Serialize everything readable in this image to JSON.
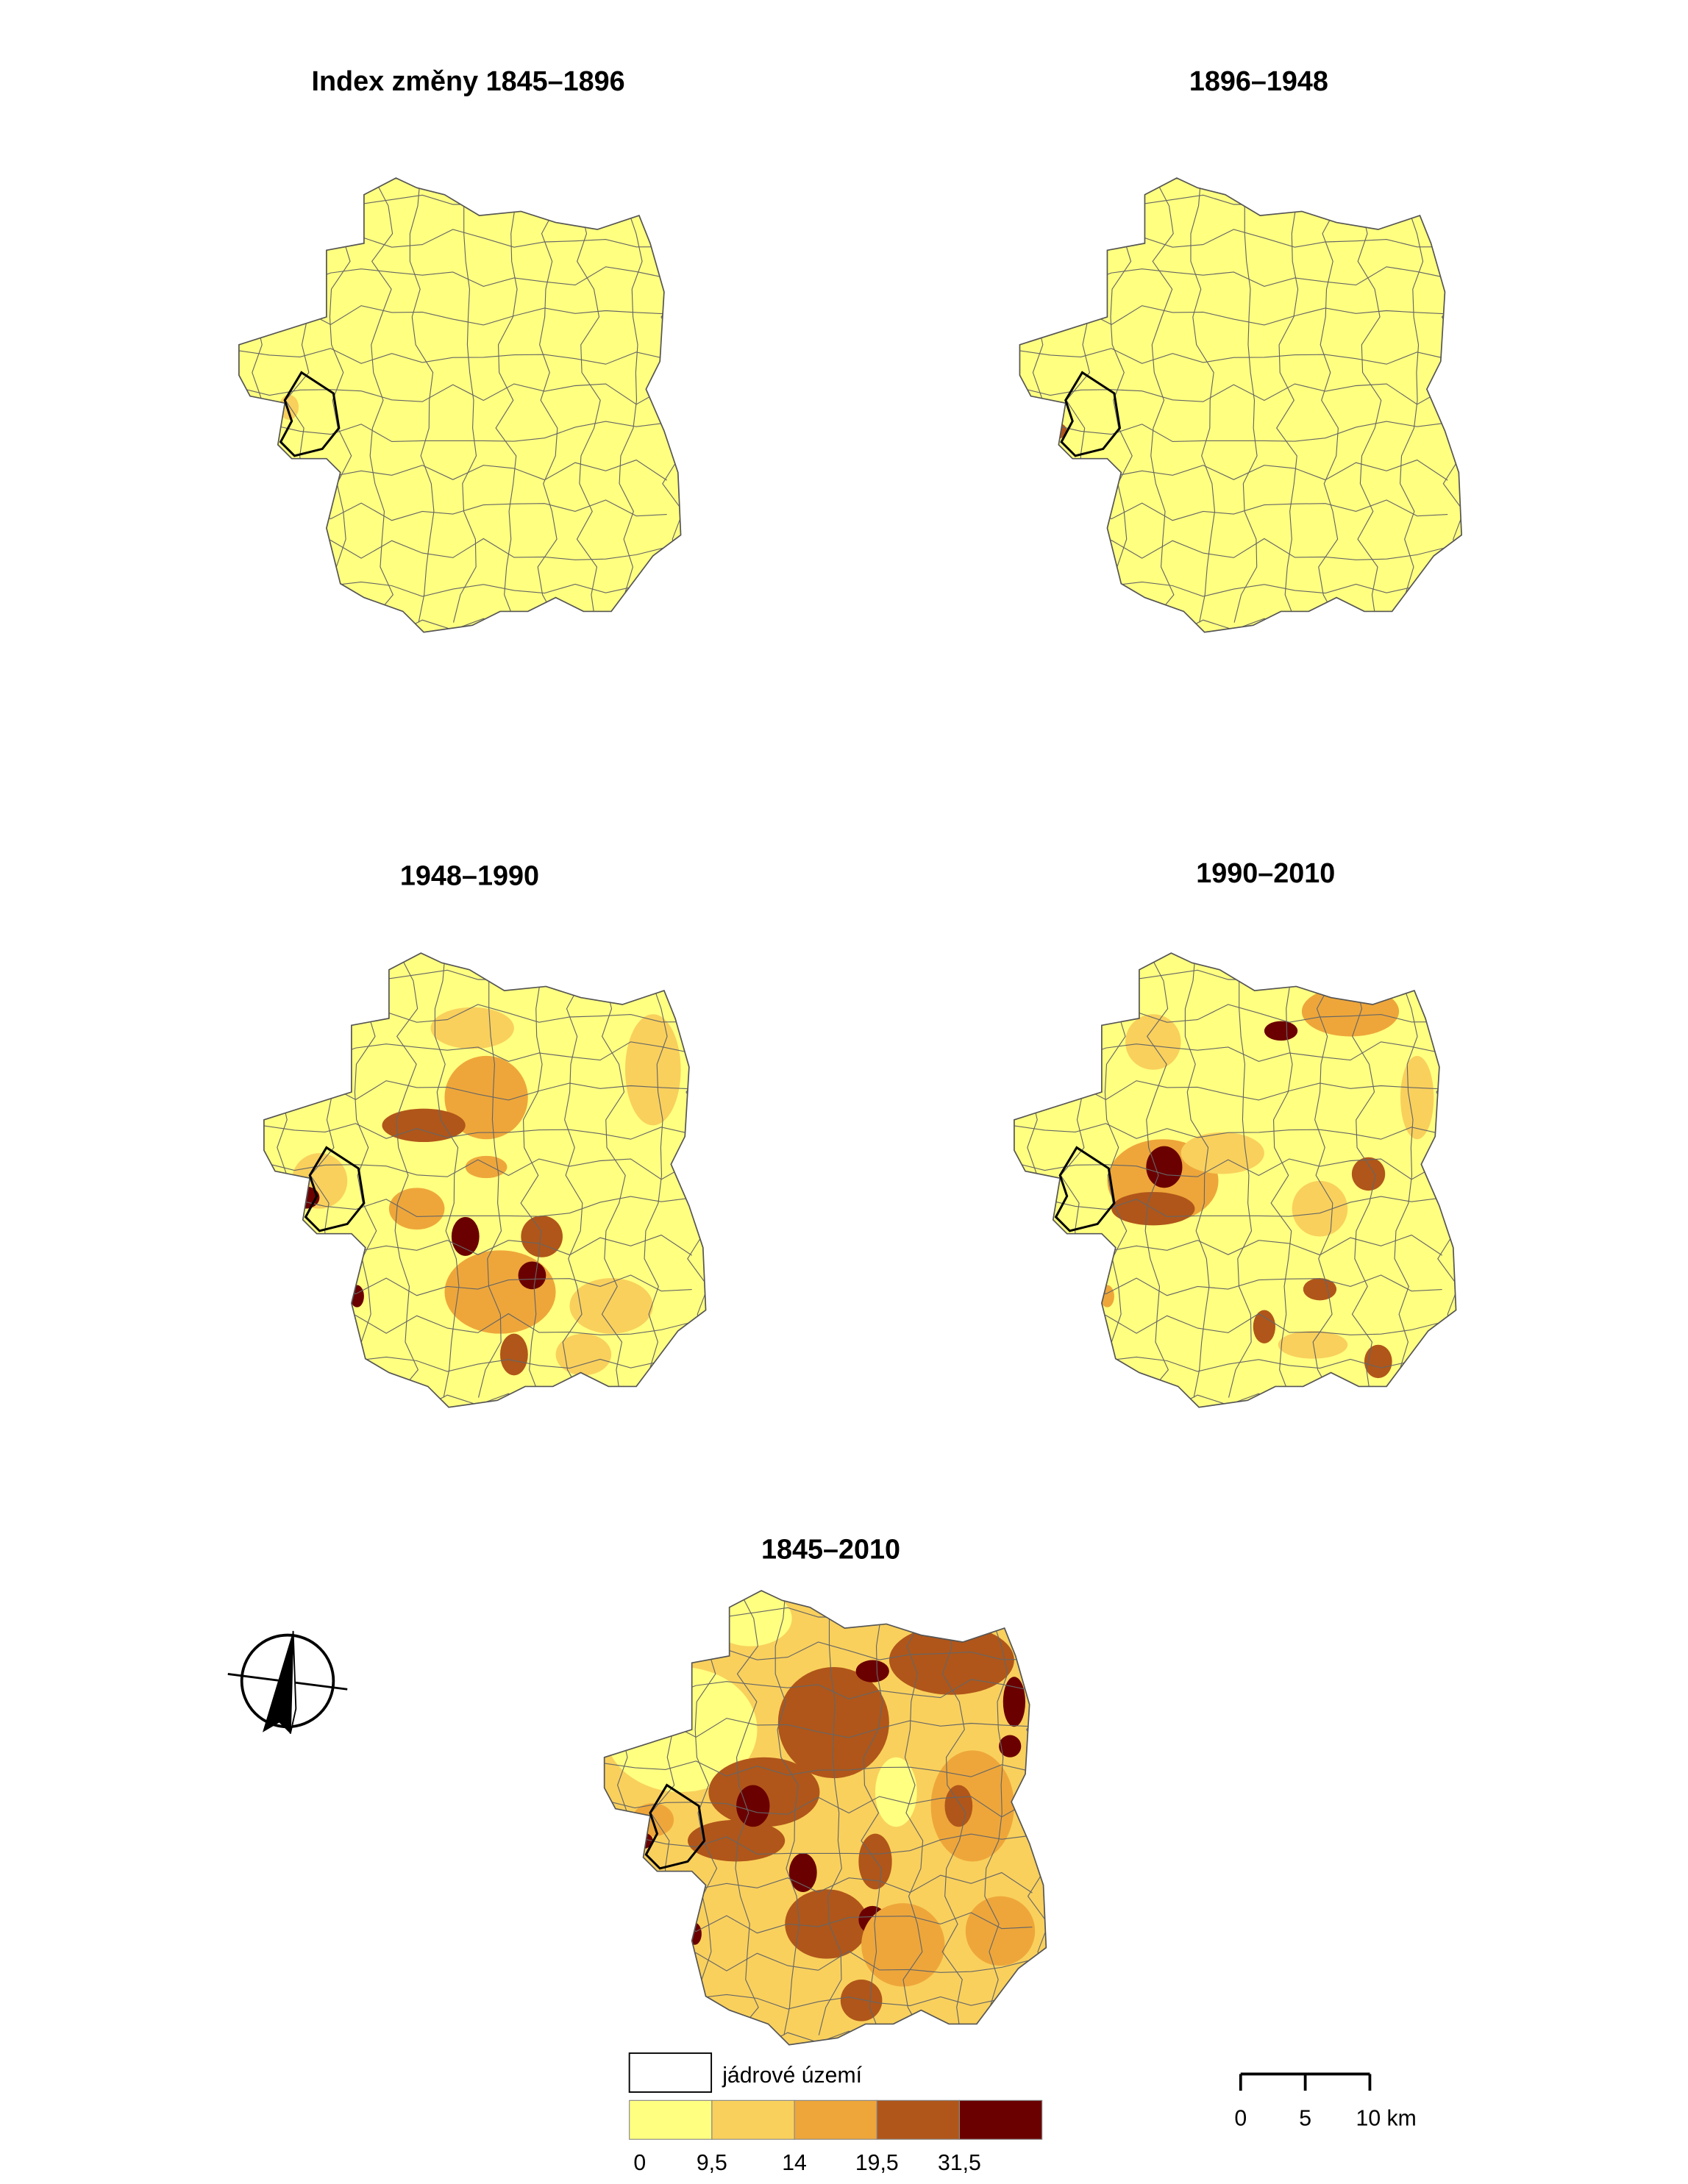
{
  "maps": [
    {
      "title": "Index změny 1845–1896"
    },
    {
      "title": "1896–1948"
    },
    {
      "title": "1948–1990"
    },
    {
      "title": "1990–2010"
    },
    {
      "title": "1845–2010"
    }
  ],
  "legend": {
    "core_label": "jádrové území",
    "colors": [
      "#ffff80",
      "#f9d05c",
      "#eea63a",
      "#b0561a",
      "#6b0000"
    ],
    "breaks": [
      {
        "value": 0,
        "label": "0"
      },
      {
        "value": 9.5,
        "label": "9,5"
      },
      {
        "value": 14,
        "label": "14"
      },
      {
        "value": 19.5,
        "label": "19,5"
      },
      {
        "value": 31.5,
        "label": "31,5"
      }
    ]
  },
  "scale_bar": {
    "ticks": [
      {
        "value": 0,
        "label": "0"
      },
      {
        "value": 5,
        "label": "5"
      },
      {
        "value": 10,
        "label": "10 km"
      }
    ]
  }
}
